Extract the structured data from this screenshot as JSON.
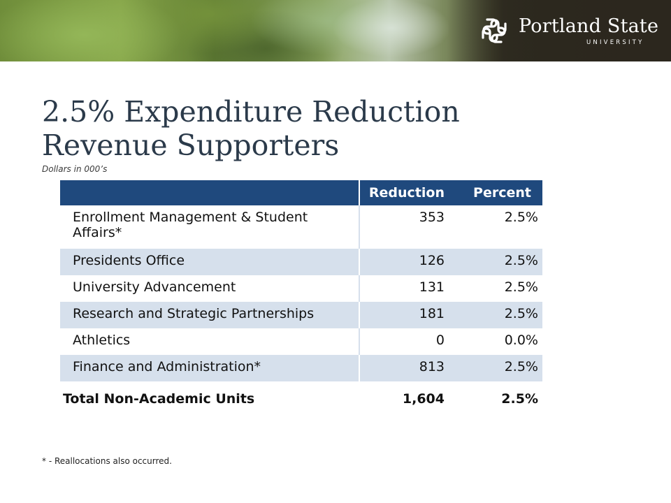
{
  "header": {
    "logo_name": "Portland State",
    "logo_sub": "UNIVERSITY"
  },
  "title_line1": "2.5% Expenditure Reduction",
  "title_line2": "Revenue Supporters",
  "subtitle": "Dollars in 000’s",
  "table": {
    "columns": [
      "",
      "Reduction",
      "Percent"
    ],
    "rows": [
      {
        "name": "Enrollment Management & Student Affairs*",
        "reduction": "353",
        "percent": "2.5%"
      },
      {
        "name": "Presidents Office",
        "reduction": "126",
        "percent": "2.5%"
      },
      {
        "name": "University Advancement",
        "reduction": "131",
        "percent": "2.5%"
      },
      {
        "name": "Research and Strategic Partnerships",
        "reduction": "181",
        "percent": "2.5%"
      },
      {
        "name": "Athletics",
        "reduction": "0",
        "percent": "0.0%"
      },
      {
        "name": "Finance and Administration*",
        "reduction": "813",
        "percent": "2.5%"
      }
    ],
    "total": {
      "name": "Total Non-Academic Units",
      "reduction": "1,604",
      "percent": "2.5%"
    }
  },
  "footnote": "* - Reallocations also occurred.",
  "colors": {
    "header_bg": "#1f497d",
    "row_shade": "#d6e0ec",
    "title": "#2b3a4a"
  }
}
